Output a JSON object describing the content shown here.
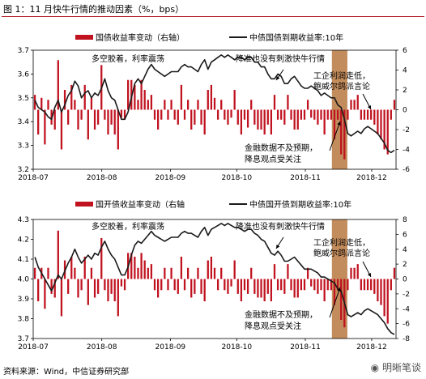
{
  "figure_title": "图 1：11 月快牛行情的推动因素（%，bps）",
  "source_note": "资料来源：Wind，中信证券研究部",
  "watermark": "明晰笔谈",
  "colors": {
    "bar": "#c0121f",
    "line": "#1a1a1a",
    "shade": "#b9783f",
    "title_rule": "#b0121b"
  },
  "chart_data": [
    {
      "type": "bar+line",
      "legend": {
        "bar_label": "国债收益率变动（右轴）",
        "line_label": "中债国债到期收益率:10年",
        "placement": "top"
      },
      "x_ticks": [
        "2018-07",
        "2018-08",
        "2018-09",
        "2018-10",
        "2018-11",
        "2018-12"
      ],
      "left_axis": {
        "ticks": [
          "3.7",
          "3.6",
          "3.5",
          "3.4",
          "3.3",
          "3.2"
        ],
        "ylim": [
          3.2,
          3.7
        ]
      },
      "right_axis": {
        "ticks": [
          "6",
          "4",
          "2",
          "0",
          "-2",
          "-4",
          "-6"
        ],
        "ylim": [
          -6,
          6
        ]
      },
      "shade_period": [
        "2018-11-13",
        "2018-11-20"
      ],
      "annotations": [
        "多空胶着，利率震荡",
        "降准也没有刺激快牛行情",
        "工企利润走低，",
        "鲍威尔鸽派言论",
        "金融数据不及预期，",
        "降息观点受关注"
      ],
      "line_values": [
        3.49,
        3.46,
        3.45,
        3.44,
        3.42,
        3.41,
        3.46,
        3.49,
        3.44,
        3.47,
        3.51,
        3.53,
        3.57,
        3.55,
        3.5,
        3.52,
        3.53,
        3.5,
        3.52,
        3.51,
        3.54,
        3.58,
        3.53,
        3.5,
        3.49,
        3.45,
        3.41,
        3.41,
        3.44,
        3.5,
        3.56,
        3.58,
        3.56,
        3.59,
        3.62,
        3.64,
        3.62,
        3.61,
        3.6,
        3.59,
        3.6,
        3.61,
        3.61,
        3.61,
        3.63,
        3.64,
        3.63,
        3.63,
        3.62,
        3.61,
        3.64,
        3.66,
        3.62,
        3.65,
        3.66,
        3.67,
        3.68,
        3.67,
        3.68,
        3.67,
        3.66,
        3.67,
        3.67,
        3.66,
        3.67,
        3.67,
        3.65,
        3.65,
        3.63,
        3.63,
        3.6,
        3.58,
        3.58,
        3.6,
        3.59,
        3.56,
        3.56,
        3.58,
        3.59,
        3.57,
        3.55,
        3.54,
        3.54,
        3.55,
        3.54,
        3.53,
        3.51,
        3.52,
        3.51,
        3.5,
        3.5,
        3.47,
        3.46,
        3.41,
        3.35,
        3.34,
        3.35,
        3.36,
        3.35,
        3.37,
        3.38,
        3.37,
        3.36,
        3.35,
        3.33,
        3.31,
        3.28,
        3.27,
        3.28
      ],
      "bar_values": [
        1.5,
        -2.5,
        1.2,
        -3.5,
        1.0,
        -1.5,
        -2.0,
        5.0,
        -4.0,
        2.0,
        -1.5,
        2.5,
        1.0,
        -2.0,
        -1.0,
        2.5,
        -3.0,
        1.2,
        -2.0,
        -1.5,
        4.5,
        -1.0,
        -2.5,
        -1.5,
        -2.5,
        -4.0,
        -0.8,
        -1.0,
        3.0,
        3.0,
        2.5,
        1.0,
        3.0,
        2.0,
        1.0,
        1.5,
        -1.0,
        -2.0,
        -1.0,
        1.0,
        -1.0,
        1.0,
        -1.0,
        -1.5,
        2.5,
        -1.0,
        1.0,
        -2.0,
        -1.5,
        1.0,
        -1.5,
        -2.5,
        2.0,
        2.5,
        1.2,
        -1.0,
        1.0,
        -1.0,
        -1.5,
        -0.8,
        2.0,
        -1.5,
        -2.5,
        -1.0,
        -1.8,
        1.0,
        -1.5,
        -2.0,
        -2.0,
        -2.5,
        -1.5,
        -2.5,
        1.5,
        -1.0,
        -1.0,
        -1.5,
        1.5,
        -1.0,
        -2.0,
        -2.0,
        -1.0,
        -1.0,
        1.0,
        -0.8,
        -1.0,
        -1.5,
        -1.0,
        -2.5,
        -1.0,
        -1.0,
        -3.0,
        -1.0,
        -4.5,
        -5.0,
        -1.0,
        1.0,
        1.0,
        1.5,
        -1.0,
        -1.0,
        -1.0,
        -1.0,
        -1.5,
        -2.5,
        -3.0,
        -4.0,
        -4.5,
        -1.0,
        1.0
      ]
    },
    {
      "type": "bar+line",
      "legend": {
        "bar_label": "国开债收益率变动（右轴",
        "line_label": "中债国开债到期收益率:10年",
        "placement": "top"
      },
      "x_ticks": [
        "2018-07",
        "2018-08",
        "2018-09",
        "2018-10",
        "2018-11",
        "2018-12"
      ],
      "left_axis": {
        "ticks": [
          "4.3",
          "4.2",
          "4.1",
          "4.0",
          "3.9",
          "3.8",
          "3.7"
        ],
        "ylim": [
          3.7,
          4.3
        ]
      },
      "right_axis": {
        "ticks": [
          "8",
          "6",
          "4",
          "2",
          "0",
          "-2",
          "-4",
          "-6",
          "-8"
        ],
        "ylim": [
          -8,
          8
        ]
      },
      "shade_period": [
        "2018-11-13",
        "2018-11-20"
      ],
      "annotations": [
        "多空胶着，利率震荡",
        "降准也没有刺激快牛行情",
        "工企利润走低，",
        "鲍威尔鸽派言论",
        "金融数据不及预期，",
        "降息观点受关注"
      ],
      "line_values": [
        4.11,
        4.06,
        4.03,
        4.0,
        3.97,
        3.94,
        3.98,
        4.02,
        4.0,
        4.04,
        4.08,
        4.11,
        4.15,
        4.11,
        4.08,
        4.1,
        4.12,
        4.1,
        4.13,
        4.12,
        4.16,
        4.19,
        4.15,
        4.12,
        4.1,
        4.06,
        4.02,
        4.02,
        4.06,
        4.12,
        4.17,
        4.19,
        4.18,
        4.2,
        4.22,
        4.24,
        4.22,
        4.21,
        4.2,
        4.19,
        4.2,
        4.21,
        4.21,
        4.21,
        4.23,
        4.24,
        4.23,
        4.23,
        4.22,
        4.21,
        4.24,
        4.26,
        4.22,
        4.25,
        4.26,
        4.27,
        4.28,
        4.27,
        4.28,
        4.27,
        4.26,
        4.26,
        4.25,
        4.24,
        4.25,
        4.25,
        4.23,
        4.22,
        4.2,
        4.19,
        4.16,
        4.13,
        4.12,
        4.14,
        4.12,
        4.09,
        4.09,
        4.1,
        4.11,
        4.09,
        4.07,
        4.05,
        4.05,
        4.05,
        4.04,
        4.03,
        4.01,
        4.01,
        4.0,
        3.99,
        3.98,
        3.95,
        3.94,
        3.88,
        3.82,
        3.81,
        3.82,
        3.83,
        3.82,
        3.84,
        3.85,
        3.84,
        3.83,
        3.82,
        3.8,
        3.78,
        3.75,
        3.73,
        3.72
      ],
      "bar_values": [
        1.5,
        -3.0,
        1.5,
        -4.0,
        1.5,
        -2.0,
        -2.5,
        6.5,
        -5.0,
        2.5,
        -2.0,
        3.0,
        1.5,
        -2.5,
        -1.5,
        3.0,
        -3.5,
        1.5,
        -2.5,
        -2.0,
        5.5,
        -1.5,
        -3.0,
        -2.0,
        -3.0,
        -5.0,
        -1.0,
        -1.5,
        3.5,
        3.5,
        3.0,
        1.5,
        3.5,
        2.5,
        1.5,
        2.0,
        -1.5,
        -2.5,
        -1.5,
        1.5,
        -1.5,
        1.5,
        -1.5,
        -2.0,
        3.0,
        -1.5,
        1.5,
        -2.5,
        -2.0,
        1.5,
        -2.0,
        -3.0,
        2.5,
        3.0,
        1.5,
        -1.5,
        1.5,
        -1.5,
        -2.0,
        -1.0,
        2.5,
        -2.0,
        -3.0,
        -1.5,
        -2.0,
        1.5,
        -2.0,
        -2.5,
        -2.5,
        -3.0,
        -2.0,
        -3.0,
        2.0,
        -1.5,
        -1.5,
        -2.0,
        2.0,
        -1.5,
        -2.5,
        -2.5,
        -1.5,
        -1.5,
        1.5,
        -1.0,
        -1.5,
        -2.0,
        -1.5,
        -3.0,
        -1.5,
        -1.5,
        -3.5,
        -1.5,
        -5.5,
        -6.5,
        -1.5,
        1.5,
        1.5,
        2.0,
        -1.5,
        -1.5,
        -1.5,
        -1.5,
        -2.0,
        -3.0,
        -3.5,
        -5.0,
        -6.0,
        -1.5,
        1.5
      ]
    }
  ]
}
